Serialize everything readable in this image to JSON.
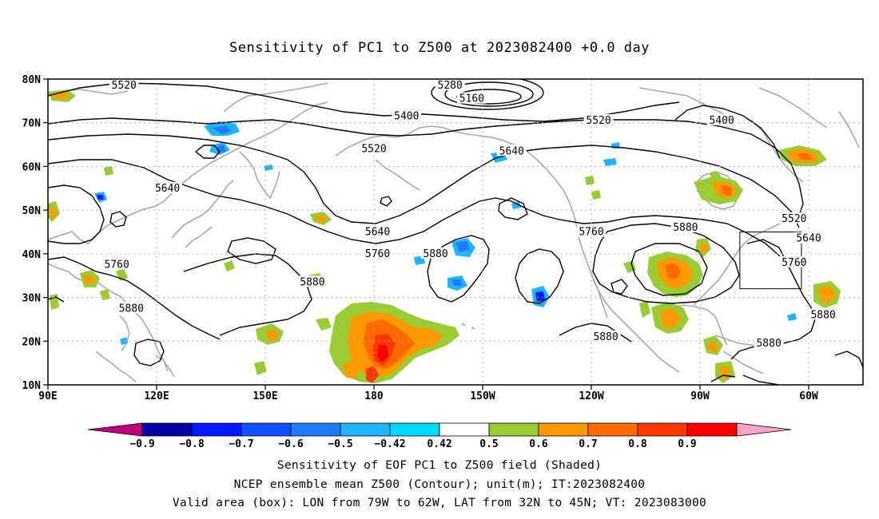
{
  "title": "Sensitivity of PC1 to Z500 at 2023082400 +0.0 day",
  "map": {
    "lat_labels": [
      "80N",
      "70N",
      "60N",
      "50N",
      "40N",
      "30N",
      "20N",
      "10N"
    ],
    "lon_labels": [
      "90E",
      "120E",
      "150E",
      "180",
      "150W",
      "120W",
      "90W",
      "60W"
    ],
    "contour_labels": [
      {
        "text": "5280",
        "lon": -159,
        "lat": 78.5
      },
      {
        "text": "5160",
        "lon": -153,
        "lat": 75.5
      },
      {
        "text": "5520",
        "lon": 111,
        "lat": 78.5
      },
      {
        "text": "5400",
        "lon": -171,
        "lat": 71.5
      },
      {
        "text": "5520",
        "lon": -118,
        "lat": 70.5
      },
      {
        "text": "5400",
        "lon": -84,
        "lat": 70.5
      },
      {
        "text": "5520",
        "lon": 180,
        "lat": 64
      },
      {
        "text": "5640",
        "lon": -142,
        "lat": 63.5
      },
      {
        "text": "5640",
        "lon": 123,
        "lat": 55
      },
      {
        "text": "5520",
        "lon": -64,
        "lat": 48
      },
      {
        "text": "5640",
        "lon": -60,
        "lat": 43.5
      },
      {
        "text": "5640",
        "lon": -179,
        "lat": 45
      },
      {
        "text": "5760",
        "lon": -179,
        "lat": 40
      },
      {
        "text": "5880",
        "lon": -163,
        "lat": 40
      },
      {
        "text": "5760",
        "lon": -120,
        "lat": 45
      },
      {
        "text": "5880",
        "lon": -94,
        "lat": 46
      },
      {
        "text": "5760",
        "lon": -64,
        "lat": 38
      },
      {
        "text": "5760",
        "lon": 109,
        "lat": 37.5
      },
      {
        "text": "5880",
        "lon": 163,
        "lat": 33.5
      },
      {
        "text": "5880",
        "lon": 113,
        "lat": 27.5
      },
      {
        "text": "5880",
        "lon": -56,
        "lat": 26
      },
      {
        "text": "5880",
        "lon": -116,
        "lat": 21
      },
      {
        "text": "5880",
        "lon": -71,
        "lat": 19.5
      }
    ],
    "box": {
      "lon_min": -79,
      "lon_max": -62,
      "lat_min": 32,
      "lat_max": 45
    }
  },
  "colorbar": {
    "labels": [
      "−0.9",
      "−0.8",
      "−0.7",
      "−0.6",
      "−0.5",
      "−0.42",
      "0.42",
      "0.5",
      "0.6",
      "0.7",
      "0.8",
      "0.9"
    ],
    "colors": [
      "#c0007c",
      "#0000a8",
      "#0018ff",
      "#1050ff",
      "#1e7aff",
      "#1eb4ff",
      "#00d8ff",
      "#ffffff",
      "#99cc33",
      "#ff9900",
      "#ff6a00",
      "#ff3800",
      "#ff0000",
      "#f5a6c8"
    ]
  },
  "captions": {
    "line1": "Sensitivity of EOF PC1 to Z500 field (Shaded)",
    "line2": "NCEP ensemble mean Z500 (Contour); unit(m); IT:2023082400",
    "line3": "Valid area (box): LON from 79W to 62W, LAT from 32N to 45N; VT: 2023083000"
  }
}
